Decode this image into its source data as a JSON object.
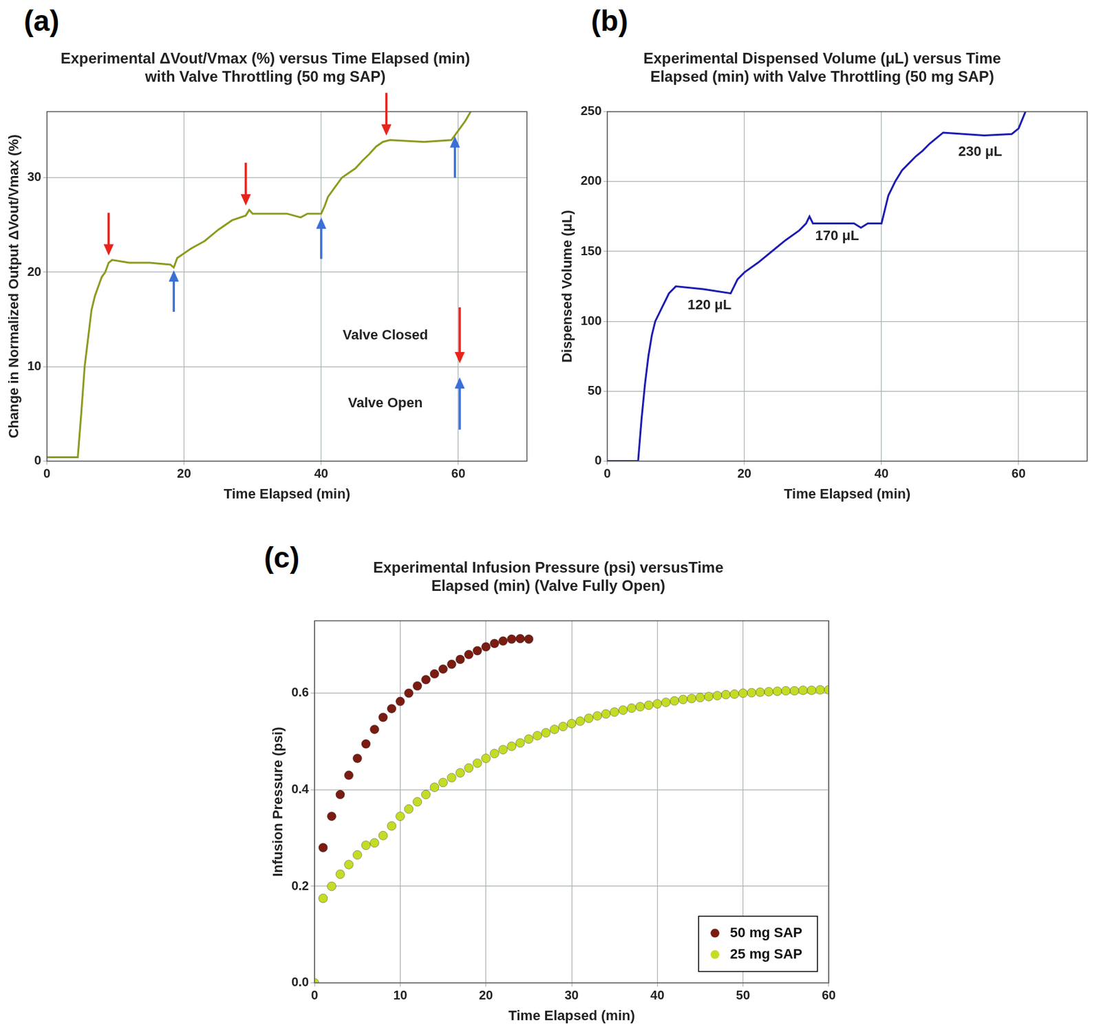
{
  "chart_data": [
    {
      "panel": "(a)",
      "type": "line",
      "title": [
        "Experimental ΔVout/Vmax (%) versus Time Elapsed (min)",
        "with Valve Throttling (50 mg SAP)"
      ],
      "x_label": "Time Elapsed (min)",
      "y_label": "Change in Normalized Output ΔVout/Vmax (%)",
      "xlim": [
        0,
        70
      ],
      "xticks": [
        0,
        20,
        40,
        60
      ],
      "ylim": [
        0,
        37
      ],
      "yticks": [
        0,
        10,
        20,
        30
      ],
      "grid": true,
      "color": "#8d9a1e",
      "x": [
        0,
        4.5,
        5,
        5.5,
        6,
        6.5,
        7,
        7.5,
        8,
        8.5,
        9,
        9.5,
        12,
        15,
        18,
        18.5,
        19,
        20,
        21,
        23,
        25,
        27,
        29,
        29.5,
        30,
        35,
        37,
        38,
        40,
        40.5,
        41,
        42,
        43,
        44,
        45,
        46,
        47,
        48,
        49,
        50,
        55,
        59,
        60,
        61,
        61.8
      ],
      "values": [
        0.4,
        0.4,
        5,
        10,
        13,
        16,
        17.5,
        18.5,
        19.5,
        20,
        21,
        21.3,
        21,
        21,
        20.8,
        20.5,
        21.5,
        22,
        22.5,
        23.3,
        24.5,
        25.5,
        26,
        26.6,
        26.2,
        26.2,
        25.8,
        26.2,
        26.2,
        27,
        28,
        29,
        30,
        30.5,
        31,
        31.8,
        32.5,
        33.3,
        33.8,
        34,
        33.8,
        34,
        35,
        36,
        37
      ],
      "events": [
        {
          "name": "Valve Closed",
          "color": "#e8231c",
          "marker": "arrow_down",
          "x": [
            9,
            29,
            49.5
          ],
          "y": [
            21.5,
            26.8,
            34.2
          ]
        },
        {
          "name": "Valve Open",
          "color": "#3a6fd8",
          "marker": "arrow_up",
          "x": [
            18.5,
            40,
            59.5
          ],
          "y": [
            20.6,
            26.2,
            34.8
          ]
        }
      ]
    },
    {
      "panel": "(b)",
      "type": "line",
      "title": [
        "Experimental Dispensed Volume (μL) versus Time",
        "Elapsed (min) with Valve Throttling (50 mg SAP)"
      ],
      "x_label": "Time Elapsed (min)",
      "y_label": "Dispensed Volume (μL)",
      "xlim": [
        0,
        70
      ],
      "xticks": [
        0,
        20,
        40,
        60
      ],
      "ylim": [
        0,
        250
      ],
      "yticks": [
        0,
        50,
        100,
        150,
        200,
        250
      ],
      "grid": true,
      "color": "#1c1cb0",
      "x": [
        0,
        4.5,
        5,
        5.5,
        6,
        6.5,
        7,
        8,
        9,
        10,
        14,
        18,
        18.5,
        19,
        20,
        22,
        24,
        26,
        28,
        29,
        29.5,
        30,
        36,
        37,
        38,
        40,
        40.5,
        41,
        42,
        43,
        44,
        45,
        46,
        47,
        48,
        49,
        55,
        59,
        60,
        61
      ],
      "values": [
        0,
        0,
        30,
        55,
        75,
        90,
        100,
        110,
        120,
        125,
        123,
        120,
        125,
        130,
        135,
        142,
        150,
        158,
        165,
        170,
        175,
        170,
        170,
        167,
        170,
        170,
        180,
        190,
        200,
        208,
        213,
        218,
        222,
        227,
        231,
        235,
        233,
        234,
        238,
        250
      ],
      "annotations": [
        "120 μL",
        "170 μL",
        "230 μL"
      ]
    },
    {
      "panel": "(c)",
      "type": "scatter",
      "title": [
        "Experimental Infusion Pressure (psi) versusTime",
        "Elapsed (min) (Valve Fully Open)"
      ],
      "x_label": "Time Elapsed (min)",
      "y_label": "Infusion Pressure (psi)",
      "xlim": [
        0,
        60
      ],
      "xticks": [
        0,
        10,
        20,
        30,
        40,
        50,
        60
      ],
      "ylim": [
        0,
        0.75
      ],
      "yticks": [
        {
          "value": 0,
          "label": "0.0"
        },
        0.2,
        0.4,
        0.6
      ],
      "grid": true,
      "legend": "lower right",
      "series": [
        {
          "name": "50 mg SAP",
          "color": "#7a1c12",
          "marker": "circle",
          "x": [
            1,
            2,
            3,
            4,
            5,
            6,
            7,
            8,
            9,
            10,
            11,
            12,
            13,
            14,
            15,
            16,
            17,
            18,
            19,
            20,
            21,
            22,
            23,
            24,
            25
          ],
          "values": [
            0.28,
            0.345,
            0.39,
            0.43,
            0.465,
            0.495,
            0.525,
            0.55,
            0.568,
            0.583,
            0.6,
            0.615,
            0.628,
            0.64,
            0.65,
            0.66,
            0.67,
            0.68,
            0.688,
            0.696,
            0.703,
            0.708,
            0.712,
            0.713,
            0.712
          ]
        },
        {
          "name": "25 mg SAP",
          "color": "#c5dc26",
          "marker": "circle",
          "x": [
            0,
            1,
            2,
            3,
            4,
            5,
            6,
            7,
            8,
            9,
            10,
            11,
            12,
            13,
            14,
            15,
            16,
            17,
            18,
            19,
            20,
            21,
            22,
            23,
            24,
            25,
            26,
            27,
            28,
            29,
            30,
            31,
            32,
            33,
            34,
            35,
            36,
            37,
            38,
            39,
            40,
            41,
            42,
            43,
            44,
            45,
            46,
            47,
            48,
            49,
            50,
            51,
            52,
            53,
            54,
            55,
            56,
            57,
            58,
            59,
            60
          ],
          "values": [
            0,
            0.175,
            0.2,
            0.225,
            0.245,
            0.265,
            0.285,
            0.29,
            0.305,
            0.325,
            0.345,
            0.36,
            0.375,
            0.39,
            0.405,
            0.415,
            0.425,
            0.435,
            0.445,
            0.455,
            0.465,
            0.475,
            0.483,
            0.49,
            0.497,
            0.505,
            0.512,
            0.518,
            0.525,
            0.531,
            0.537,
            0.542,
            0.548,
            0.553,
            0.557,
            0.561,
            0.565,
            0.569,
            0.572,
            0.575,
            0.578,
            0.581,
            0.584,
            0.587,
            0.589,
            0.591,
            0.593,
            0.595,
            0.597,
            0.598,
            0.6,
            0.601,
            0.602,
            0.603,
            0.604,
            0.605,
            0.605,
            0.606,
            0.606,
            0.607,
            0.607
          ]
        }
      ]
    }
  ]
}
